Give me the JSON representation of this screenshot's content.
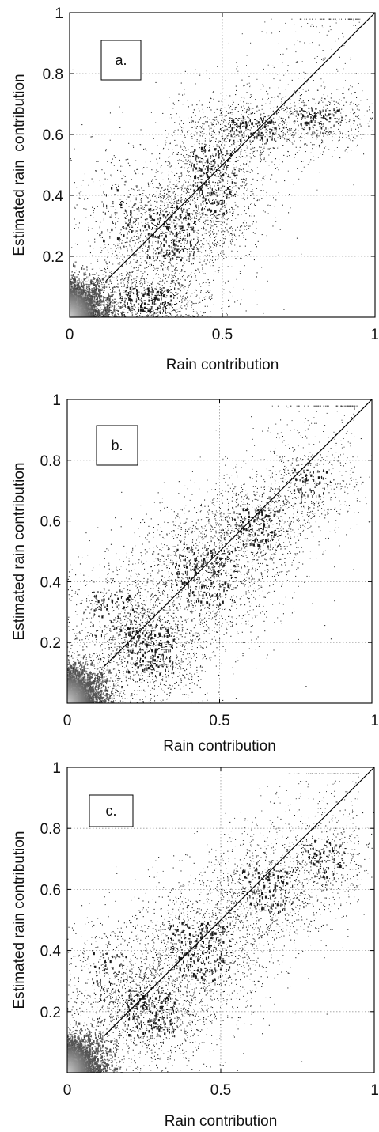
{
  "chart_data": [
    {
      "type": "scatter",
      "panel_label": "a.",
      "xlabel": "Rain contribution",
      "ylabel": "Estimated rain  contribution",
      "xlim": [
        0,
        1
      ],
      "ylim": [
        0,
        1
      ],
      "x_ticks": [
        "0",
        "0.5",
        "1"
      ],
      "y_ticks": [
        "0.2",
        "0.4",
        "0.6",
        "0.8",
        "1"
      ],
      "grid": true,
      "reference_line": {
        "from": [
          0,
          0
        ],
        "to": [
          1,
          1
        ]
      },
      "density_bands": [
        {
          "x": 0.04,
          "y": 0.04,
          "sx": 0.05,
          "sy": 0.05,
          "weight": 1.2
        },
        {
          "x": 0.47,
          "y": 0.45,
          "sx": 0.09,
          "sy": 0.14,
          "weight": 1.0
        },
        {
          "x": 0.33,
          "y": 0.28,
          "sx": 0.1,
          "sy": 0.11,
          "weight": 0.8
        },
        {
          "x": 0.25,
          "y": 0.06,
          "sx": 0.12,
          "sy": 0.05,
          "weight": 0.7
        },
        {
          "x": 0.82,
          "y": 0.65,
          "sx": 0.09,
          "sy": 0.05,
          "weight": 0.4
        },
        {
          "x": 0.6,
          "y": 0.62,
          "sx": 0.1,
          "sy": 0.05,
          "weight": 0.4
        },
        {
          "x": 0.18,
          "y": 0.35,
          "sx": 0.1,
          "sy": 0.13,
          "weight": 0.3
        }
      ]
    },
    {
      "type": "scatter",
      "panel_label": "b.",
      "xlabel": "Rain contribution",
      "ylabel": "Estimated rain contribution",
      "xlim": [
        0,
        1
      ],
      "ylim": [
        0,
        1
      ],
      "x_ticks": [
        "0",
        "0.5",
        "1"
      ],
      "y_ticks": [
        "0.2",
        "0.4",
        "0.6",
        "0.8",
        "1"
      ],
      "grid": true,
      "reference_line": {
        "from": [
          0,
          0
        ],
        "to": [
          1,
          1
        ]
      },
      "density_bands": [
        {
          "x": 0.04,
          "y": 0.04,
          "sx": 0.05,
          "sy": 0.05,
          "weight": 1.2
        },
        {
          "x": 0.45,
          "y": 0.42,
          "sx": 0.13,
          "sy": 0.12,
          "weight": 1.0
        },
        {
          "x": 0.27,
          "y": 0.18,
          "sx": 0.1,
          "sy": 0.1,
          "weight": 0.8
        },
        {
          "x": 0.62,
          "y": 0.58,
          "sx": 0.1,
          "sy": 0.08,
          "weight": 0.6
        },
        {
          "x": 0.8,
          "y": 0.72,
          "sx": 0.08,
          "sy": 0.07,
          "weight": 0.3
        },
        {
          "x": 0.15,
          "y": 0.3,
          "sx": 0.09,
          "sy": 0.1,
          "weight": 0.3
        }
      ]
    },
    {
      "type": "scatter",
      "panel_label": "c.",
      "xlabel": "Rain contribution",
      "ylabel": "Estimated rain contribution",
      "xlim": [
        0,
        1
      ],
      "ylim": [
        0,
        1
      ],
      "x_ticks": [
        "0",
        "0.5",
        "1"
      ],
      "y_ticks": [
        "0.2",
        "0.4",
        "0.6",
        "0.8",
        "1"
      ],
      "grid": true,
      "reference_line": {
        "from": [
          0,
          0
        ],
        "to": [
          1,
          1
        ]
      },
      "density_bands": [
        {
          "x": 0.04,
          "y": 0.04,
          "sx": 0.05,
          "sy": 0.05,
          "weight": 1.2
        },
        {
          "x": 0.43,
          "y": 0.4,
          "sx": 0.13,
          "sy": 0.12,
          "weight": 1.0
        },
        {
          "x": 0.27,
          "y": 0.2,
          "sx": 0.1,
          "sy": 0.1,
          "weight": 0.8
        },
        {
          "x": 0.65,
          "y": 0.6,
          "sx": 0.11,
          "sy": 0.09,
          "weight": 0.6
        },
        {
          "x": 0.84,
          "y": 0.7,
          "sx": 0.08,
          "sy": 0.08,
          "weight": 0.35
        },
        {
          "x": 0.14,
          "y": 0.32,
          "sx": 0.08,
          "sy": 0.1,
          "weight": 0.3
        }
      ]
    }
  ]
}
